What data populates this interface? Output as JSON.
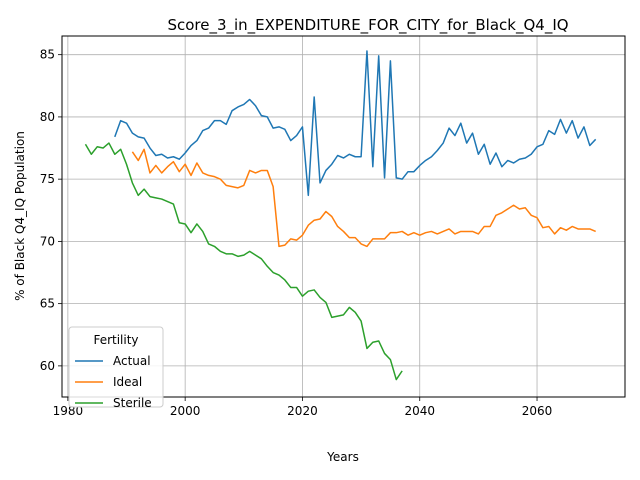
{
  "chart_data": {
    "type": "line",
    "title": "Score_3_in_EXPENDITURE_FOR_CITY_for_Black_Q4_IQ",
    "xlabel": "Years",
    "ylabel": "% of Black Q4_IQ Population",
    "xlim": [
      1979,
      2075
    ],
    "ylim": [
      57.5,
      86.5
    ],
    "xticks": [
      1980,
      2000,
      2020,
      2040,
      2060
    ],
    "yticks": [
      60,
      65,
      70,
      75,
      80,
      85
    ],
    "grid": true,
    "legend": {
      "title": "Fertility",
      "placement": "bottom-left"
    },
    "series": [
      {
        "name": "Actual",
        "color": "#1f77b4",
        "x": [
          1988,
          1989,
          1990,
          1991,
          1992,
          1993,
          1994,
          1995,
          1996,
          1997,
          1998,
          1999,
          2000,
          2001,
          2002,
          2003,
          2004,
          2005,
          2006,
          2007,
          2008,
          2009,
          2010,
          2011,
          2012,
          2013,
          2014,
          2015,
          2016,
          2017,
          2018,
          2019,
          2020,
          2021,
          2022,
          2023,
          2024,
          2025,
          2026,
          2027,
          2028,
          2029,
          2030,
          2031,
          2032,
          2033,
          2034,
          2035,
          2036,
          2037,
          2038,
          2039,
          2040,
          2041,
          2042,
          2043,
          2044,
          2045,
          2046,
          2047,
          2048,
          2049,
          2050,
          2051,
          2052,
          2053,
          2054,
          2055,
          2056,
          2057,
          2058,
          2059,
          2060,
          2061,
          2062,
          2063,
          2064,
          2065,
          2066,
          2067,
          2068,
          2069,
          2070
        ],
        "values": [
          78.4,
          79.7,
          79.5,
          78.7,
          78.4,
          78.3,
          77.5,
          76.9,
          77.0,
          76.7,
          76.8,
          76.6,
          77.1,
          77.7,
          78.1,
          78.9,
          79.1,
          79.7,
          79.7,
          79.4,
          80.5,
          80.8,
          81.0,
          81.4,
          80.9,
          80.1,
          80.0,
          79.1,
          79.2,
          79.0,
          78.1,
          78.5,
          79.2,
          73.7,
          81.6,
          74.7,
          75.7,
          76.2,
          76.9,
          76.7,
          77.0,
          76.8,
          76.8,
          85.3,
          76.0,
          84.9,
          75.1,
          84.5,
          75.1,
          75.0,
          75.6,
          75.6,
          76.1,
          76.5,
          76.8,
          77.3,
          77.9,
          79.1,
          78.5,
          79.5,
          77.9,
          78.7,
          77.0,
          77.8,
          76.2,
          77.1,
          76.0,
          76.5,
          76.3,
          76.6,
          76.7,
          77.0,
          77.6,
          77.8,
          78.9,
          78.6,
          79.8,
          78.7,
          79.7,
          78.3,
          79.2,
          77.7,
          78.2
        ]
      },
      {
        "name": "Ideal",
        "color": "#ff7f0e",
        "x": [
          1991,
          1992,
          1993,
          1994,
          1995,
          1996,
          1997,
          1998,
          1999,
          2000,
          2001,
          2002,
          2003,
          2004,
          2005,
          2006,
          2007,
          2008,
          2009,
          2010,
          2011,
          2012,
          2013,
          2014,
          2015,
          2016,
          2017,
          2018,
          2019,
          2020,
          2021,
          2022,
          2023,
          2024,
          2025,
          2026,
          2027,
          2028,
          2029,
          2030,
          2031,
          2032,
          2033,
          2034,
          2035,
          2036,
          2037,
          2038,
          2039,
          2040,
          2041,
          2042,
          2043,
          2044,
          2045,
          2046,
          2047,
          2048,
          2049,
          2050,
          2051,
          2052,
          2053,
          2054,
          2055,
          2056,
          2057,
          2058,
          2059,
          2060,
          2061,
          2062,
          2063,
          2064,
          2065,
          2066,
          2067,
          2068,
          2069,
          2070
        ],
        "values": [
          77.2,
          76.5,
          77.4,
          75.5,
          76.1,
          75.5,
          76.0,
          76.4,
          75.6,
          76.2,
          75.3,
          76.3,
          75.5,
          75.3,
          75.2,
          75.0,
          74.5,
          74.4,
          74.3,
          74.5,
          75.7,
          75.5,
          75.7,
          75.7,
          74.4,
          69.6,
          69.7,
          70.2,
          70.1,
          70.5,
          71.3,
          71.7,
          71.8,
          72.4,
          72.0,
          71.2,
          70.8,
          70.3,
          70.3,
          69.8,
          69.6,
          70.2,
          70.2,
          70.2,
          70.7,
          70.7,
          70.8,
          70.5,
          70.7,
          70.5,
          70.7,
          70.8,
          70.6,
          70.8,
          71.0,
          70.6,
          70.8,
          70.8,
          70.8,
          70.6,
          71.2,
          71.2,
          72.1,
          72.3,
          72.6,
          72.9,
          72.6,
          72.7,
          72.1,
          71.9,
          71.1,
          71.2,
          70.6,
          71.1,
          70.9,
          71.2,
          71.0,
          71.0,
          71.0,
          70.8
        ]
      },
      {
        "name": "Sterile",
        "color": "#2ca02c",
        "x": [
          1983,
          1984,
          1985,
          1986,
          1987,
          1988,
          1989,
          1990,
          1991,
          1992,
          1993,
          1994,
          1995,
          1996,
          1997,
          1998,
          1999,
          2000,
          2001,
          2002,
          2003,
          2004,
          2005,
          2006,
          2007,
          2008,
          2009,
          2010,
          2011,
          2012,
          2013,
          2014,
          2015,
          2016,
          2017,
          2018,
          2019,
          2020,
          2021,
          2022,
          2023,
          2024,
          2025,
          2026,
          2027,
          2028,
          2029,
          2030,
          2031,
          2032,
          2033,
          2034,
          2035,
          2036,
          2037
        ],
        "values": [
          77.8,
          77.0,
          77.6,
          77.5,
          77.9,
          77.0,
          77.4,
          76.2,
          74.7,
          73.7,
          74.2,
          73.6,
          73.5,
          73.4,
          73.2,
          73.0,
          71.5,
          71.4,
          70.7,
          71.4,
          70.8,
          69.8,
          69.6,
          69.2,
          69.0,
          69.0,
          68.8,
          68.9,
          69.2,
          68.9,
          68.6,
          68.0,
          67.5,
          67.3,
          66.9,
          66.3,
          66.3,
          65.6,
          66.0,
          66.1,
          65.5,
          65.1,
          63.9,
          64.0,
          64.1,
          64.7,
          64.3,
          63.6,
          61.4,
          61.9,
          62.0,
          61.0,
          60.5,
          58.9,
          59.6
        ]
      }
    ]
  }
}
